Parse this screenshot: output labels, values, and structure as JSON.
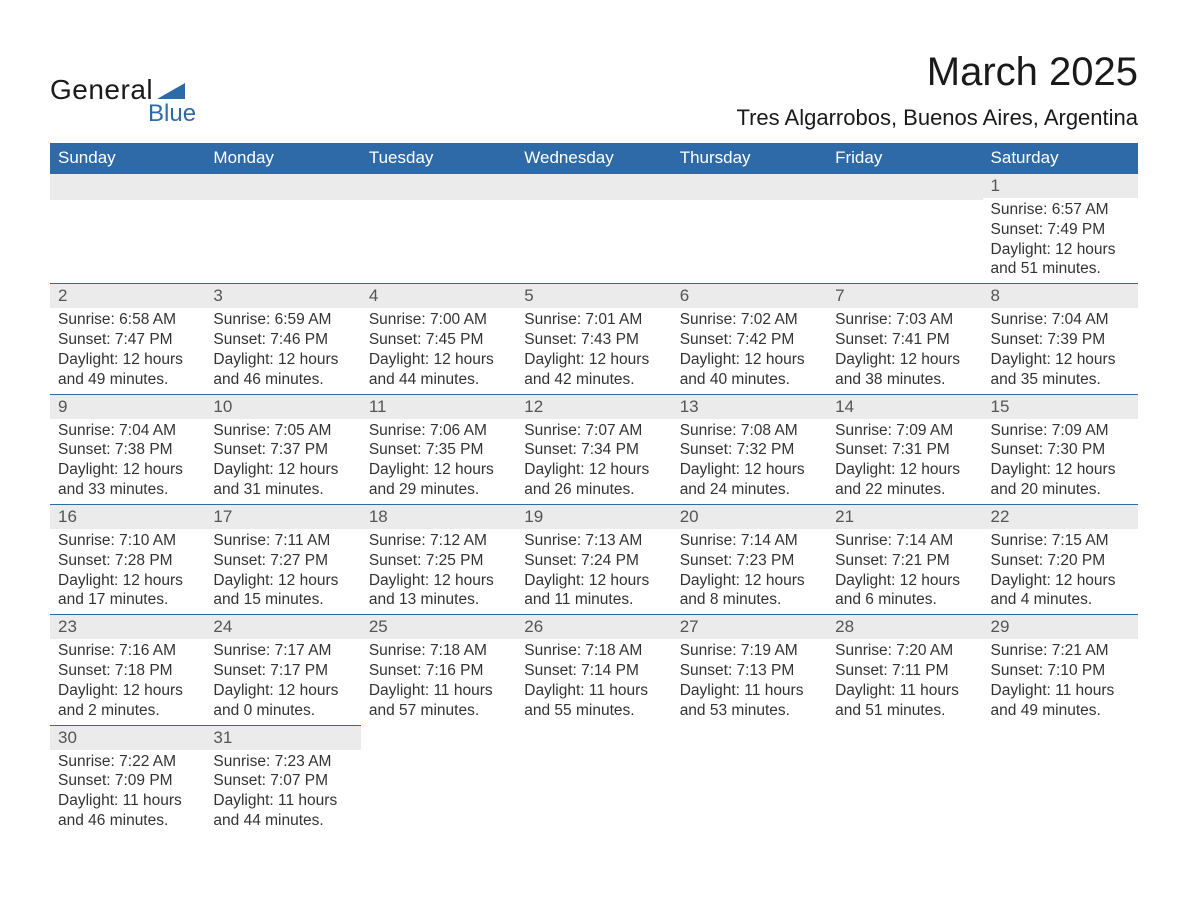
{
  "logo": {
    "text1": "General",
    "text2": "Blue",
    "tri_color": "#2e6aa8"
  },
  "title": "March 2025",
  "location": "Tres Algarrobos, Buenos Aires, Argentina",
  "columns": [
    "Sunday",
    "Monday",
    "Tuesday",
    "Wednesday",
    "Thursday",
    "Friday",
    "Saturday"
  ],
  "colors": {
    "header_bg": "#2e6aa8",
    "header_fg": "#ffffff",
    "daynum_bg": "#ebebeb",
    "border": "#2e6aa8",
    "text": "#333333"
  },
  "weeks": [
    [
      null,
      null,
      null,
      null,
      null,
      null,
      {
        "n": "1",
        "sr": "6:57 AM",
        "ss": "7:49 PM",
        "dl": "12 hours and 51 minutes."
      }
    ],
    [
      {
        "n": "2",
        "sr": "6:58 AM",
        "ss": "7:47 PM",
        "dl": "12 hours and 49 minutes."
      },
      {
        "n": "3",
        "sr": "6:59 AM",
        "ss": "7:46 PM",
        "dl": "12 hours and 46 minutes."
      },
      {
        "n": "4",
        "sr": "7:00 AM",
        "ss": "7:45 PM",
        "dl": "12 hours and 44 minutes."
      },
      {
        "n": "5",
        "sr": "7:01 AM",
        "ss": "7:43 PM",
        "dl": "12 hours and 42 minutes."
      },
      {
        "n": "6",
        "sr": "7:02 AM",
        "ss": "7:42 PM",
        "dl": "12 hours and 40 minutes."
      },
      {
        "n": "7",
        "sr": "7:03 AM",
        "ss": "7:41 PM",
        "dl": "12 hours and 38 minutes."
      },
      {
        "n": "8",
        "sr": "7:04 AM",
        "ss": "7:39 PM",
        "dl": "12 hours and 35 minutes."
      }
    ],
    [
      {
        "n": "9",
        "sr": "7:04 AM",
        "ss": "7:38 PM",
        "dl": "12 hours and 33 minutes."
      },
      {
        "n": "10",
        "sr": "7:05 AM",
        "ss": "7:37 PM",
        "dl": "12 hours and 31 minutes."
      },
      {
        "n": "11",
        "sr": "7:06 AM",
        "ss": "7:35 PM",
        "dl": "12 hours and 29 minutes."
      },
      {
        "n": "12",
        "sr": "7:07 AM",
        "ss": "7:34 PM",
        "dl": "12 hours and 26 minutes."
      },
      {
        "n": "13",
        "sr": "7:08 AM",
        "ss": "7:32 PM",
        "dl": "12 hours and 24 minutes."
      },
      {
        "n": "14",
        "sr": "7:09 AM",
        "ss": "7:31 PM",
        "dl": "12 hours and 22 minutes."
      },
      {
        "n": "15",
        "sr": "7:09 AM",
        "ss": "7:30 PM",
        "dl": "12 hours and 20 minutes."
      }
    ],
    [
      {
        "n": "16",
        "sr": "7:10 AM",
        "ss": "7:28 PM",
        "dl": "12 hours and 17 minutes."
      },
      {
        "n": "17",
        "sr": "7:11 AM",
        "ss": "7:27 PM",
        "dl": "12 hours and 15 minutes."
      },
      {
        "n": "18",
        "sr": "7:12 AM",
        "ss": "7:25 PM",
        "dl": "12 hours and 13 minutes."
      },
      {
        "n": "19",
        "sr": "7:13 AM",
        "ss": "7:24 PM",
        "dl": "12 hours and 11 minutes."
      },
      {
        "n": "20",
        "sr": "7:14 AM",
        "ss": "7:23 PM",
        "dl": "12 hours and 8 minutes."
      },
      {
        "n": "21",
        "sr": "7:14 AM",
        "ss": "7:21 PM",
        "dl": "12 hours and 6 minutes."
      },
      {
        "n": "22",
        "sr": "7:15 AM",
        "ss": "7:20 PM",
        "dl": "12 hours and 4 minutes."
      }
    ],
    [
      {
        "n": "23",
        "sr": "7:16 AM",
        "ss": "7:18 PM",
        "dl": "12 hours and 2 minutes."
      },
      {
        "n": "24",
        "sr": "7:17 AM",
        "ss": "7:17 PM",
        "dl": "12 hours and 0 minutes."
      },
      {
        "n": "25",
        "sr": "7:18 AM",
        "ss": "7:16 PM",
        "dl": "11 hours and 57 minutes."
      },
      {
        "n": "26",
        "sr": "7:18 AM",
        "ss": "7:14 PM",
        "dl": "11 hours and 55 minutes."
      },
      {
        "n": "27",
        "sr": "7:19 AM",
        "ss": "7:13 PM",
        "dl": "11 hours and 53 minutes."
      },
      {
        "n": "28",
        "sr": "7:20 AM",
        "ss": "7:11 PM",
        "dl": "11 hours and 51 minutes."
      },
      {
        "n": "29",
        "sr": "7:21 AM",
        "ss": "7:10 PM",
        "dl": "11 hours and 49 minutes."
      }
    ],
    [
      {
        "n": "30",
        "sr": "7:22 AM",
        "ss": "7:09 PM",
        "dl": "11 hours and 46 minutes."
      },
      {
        "n": "31",
        "sr": "7:23 AM",
        "ss": "7:07 PM",
        "dl": "11 hours and 44 minutes."
      },
      null,
      null,
      null,
      null,
      null
    ]
  ],
  "labels": {
    "sunrise": "Sunrise: ",
    "sunset": "Sunset: ",
    "daylight": "Daylight: "
  }
}
